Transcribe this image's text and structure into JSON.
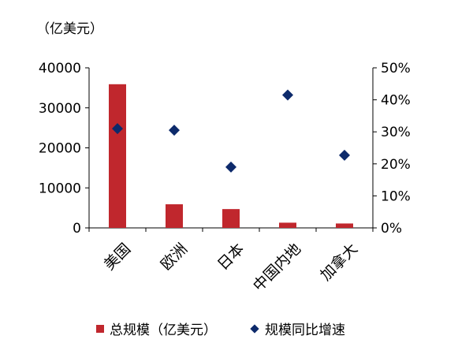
{
  "chart_data": {
    "type": "bar",
    "unit_label": "（亿美元）",
    "categories": [
      "美国",
      "欧洲",
      "日本",
      "中国内地",
      "加拿大"
    ],
    "series": [
      {
        "name": "总规模（亿美元）",
        "type": "bar",
        "axis": "left",
        "color": "#c0272d",
        "values": [
          35900,
          5900,
          4700,
          1300,
          1100
        ]
      },
      {
        "name": "规模同比增速",
        "type": "scatter",
        "axis": "right",
        "color": "#0d2a6b",
        "values": [
          0.31,
          0.305,
          0.19,
          0.415,
          0.227
        ]
      }
    ],
    "y_left": {
      "range": [
        0,
        40000
      ],
      "ticks": [
        "0",
        "10000",
        "20000",
        "30000",
        "40000"
      ]
    },
    "y_right": {
      "range": [
        0,
        0.5
      ],
      "ticks": [
        "0%",
        "10%",
        "20%",
        "30%",
        "40%",
        "50%"
      ]
    },
    "grid": false,
    "legend_position": "bottom"
  }
}
